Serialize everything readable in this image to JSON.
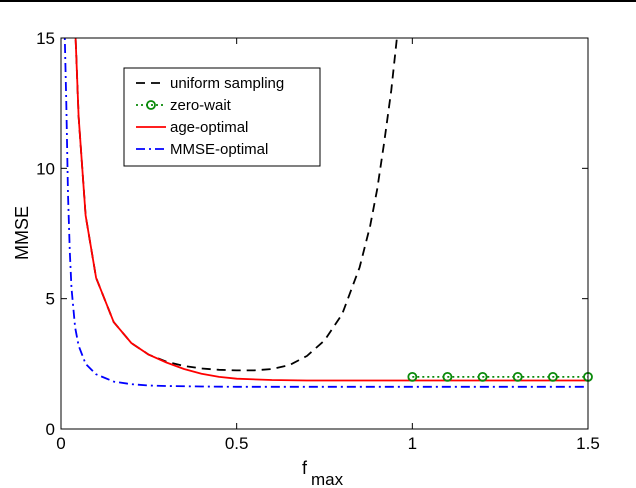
{
  "chart_data": {
    "type": "line",
    "title": "",
    "xlabel": "f",
    "xlabel_subscript": "max",
    "ylabel": "MMSE",
    "xlim": [
      0,
      1.5
    ],
    "ylim": [
      0,
      15
    ],
    "xticks": [
      0,
      0.5,
      1,
      1.5
    ],
    "xtick_labels": [
      "0",
      "0.5",
      "1",
      "1.5"
    ],
    "yticks": [
      0,
      5,
      10,
      15
    ],
    "ytick_labels": [
      "0",
      "5",
      "10",
      "15"
    ],
    "grid": false,
    "legend_position": "top-center",
    "series": [
      {
        "name": "uniform sampling",
        "style": "dashed",
        "color": "#000000",
        "marker": "none",
        "x": [
          0.04,
          0.05,
          0.07,
          0.1,
          0.15,
          0.2,
          0.25,
          0.3,
          0.35,
          0.4,
          0.45,
          0.5,
          0.55,
          0.6,
          0.65,
          0.7,
          0.75,
          0.8,
          0.85,
          0.88,
          0.9,
          0.92,
          0.94,
          0.96
        ],
        "y": [
          15.5,
          12.0,
          8.2,
          5.8,
          4.1,
          3.3,
          2.85,
          2.58,
          2.42,
          2.32,
          2.27,
          2.25,
          2.25,
          2.3,
          2.45,
          2.8,
          3.4,
          4.4,
          6.2,
          7.8,
          9.2,
          11.0,
          13.0,
          15.5
        ]
      },
      {
        "name": "zero-wait",
        "style": "dotted",
        "color": "#0a8a0a",
        "marker": "circle",
        "x": [
          1.0,
          1.1,
          1.2,
          1.3,
          1.4,
          1.5
        ],
        "y": [
          2.0,
          2.0,
          2.0,
          2.0,
          2.0,
          2.0
        ]
      },
      {
        "name": "age-optimal",
        "style": "solid",
        "color": "#ff0000",
        "marker": "none",
        "x": [
          0.04,
          0.05,
          0.07,
          0.1,
          0.15,
          0.2,
          0.25,
          0.3,
          0.35,
          0.4,
          0.45,
          0.5,
          0.6,
          0.7,
          0.8,
          1.0,
          1.2,
          1.5
        ],
        "y": [
          15.5,
          12.0,
          8.2,
          5.8,
          4.1,
          3.3,
          2.85,
          2.55,
          2.3,
          2.12,
          2.0,
          1.93,
          1.88,
          1.86,
          1.86,
          1.86,
          1.86,
          1.86
        ]
      },
      {
        "name": "MMSE-optimal",
        "style": "dashdot",
        "color": "#0000ff",
        "marker": "none",
        "x": [
          0.01,
          0.015,
          0.02,
          0.025,
          0.03,
          0.04,
          0.05,
          0.07,
          0.1,
          0.15,
          0.2,
          0.25,
          0.3,
          0.4,
          0.5,
          0.7,
          1.0,
          1.5
        ],
        "y": [
          15.5,
          12.5,
          9.0,
          6.8,
          5.4,
          3.9,
          3.2,
          2.5,
          2.1,
          1.82,
          1.72,
          1.67,
          1.65,
          1.63,
          1.62,
          1.62,
          1.62,
          1.62
        ]
      }
    ]
  }
}
